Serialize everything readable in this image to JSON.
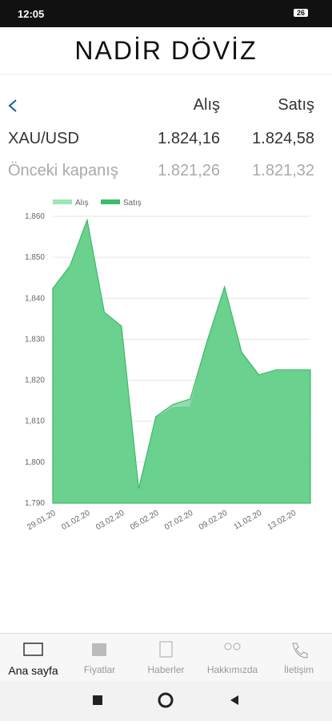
{
  "status_bar": {
    "time": "12:05",
    "battery": "26"
  },
  "header": {
    "logo": "NADİR DÖVİZ"
  },
  "table": {
    "columns": [
      "Alış",
      "Satış"
    ],
    "rows": [
      [
        "XAU/USD",
        "1.824,16",
        "1.824,58"
      ],
      [
        "Önceki kapanış",
        "1.821,26",
        "1.821,32"
      ]
    ]
  },
  "chart_data": {
    "type": "area",
    "categories": [
      "29.01.20",
      null,
      "01.02.20",
      null,
      "03.02.20",
      null,
      "05.02.20",
      null,
      "07.02.20",
      null,
      "09.02.20",
      null,
      "11.02.20",
      null,
      "13.02.20",
      null
    ],
    "series": [
      {
        "name": "Alış",
        "color": "#9be8b6",
        "values": [
          1842.1,
          1847.6,
          1858.8,
          1836.3,
          1832.9,
          1793.2,
          1810.8,
          1813.3,
          1813.5,
          1829.4,
          1842.5,
          1826.5,
          1821.0,
          1822.2,
          1822.2,
          1822.2
        ]
      },
      {
        "name": "Satış",
        "color": "#3dbb6a",
        "values": [
          1842.4,
          1847.9,
          1859.1,
          1836.6,
          1833.2,
          1793.5,
          1811.1,
          1814.1,
          1815.4,
          1829.7,
          1842.8,
          1826.8,
          1821.3,
          1822.5,
          1822.5,
          1822.5
        ]
      }
    ],
    "ylim": [
      1790,
      1860
    ],
    "yticks": [
      {
        "value": 1790,
        "label": "1,790"
      },
      {
        "value": 1800,
        "label": "1,800"
      },
      {
        "value": 1810,
        "label": "1,810"
      },
      {
        "value": 1820,
        "label": "1,820"
      },
      {
        "value": 1830,
        "label": "1,830"
      },
      {
        "value": 1840,
        "label": "1,840"
      },
      {
        "value": 1850,
        "label": "1,850"
      },
      {
        "value": 1860,
        "label": "1,860"
      }
    ],
    "grid": true,
    "legend": "top-left"
  },
  "nav": {
    "items": [
      "Ana sayfa",
      "Fiyatlar",
      "Haberler",
      "Hakkımızda",
      "İletişim"
    ]
  }
}
